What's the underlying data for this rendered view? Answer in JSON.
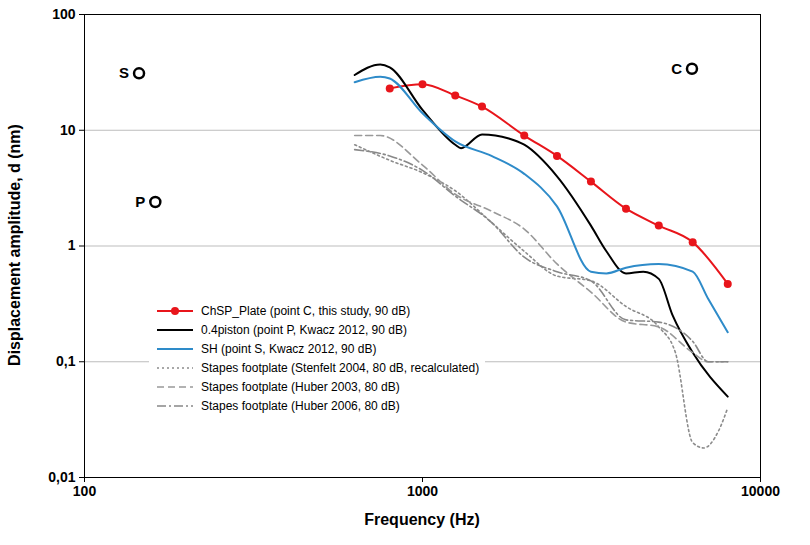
{
  "chart_data": {
    "type": "line",
    "x_label": "Frequency (Hz)",
    "y_label": "Displacement amplitude,  d (nm)",
    "log": true,
    "grid": true,
    "legend": "lower left",
    "xlim": [
      100,
      10000
    ],
    "xticks": [
      100,
      1000,
      10000
    ],
    "ylim": [
      0.01,
      100
    ],
    "yticks": [
      {
        "value": 0.01,
        "label": "0,01"
      },
      {
        "value": 0.1,
        "label": "0,1"
      },
      1,
      10,
      100
    ],
    "series": [
      {
        "name": "ChSP_Plate (point C, this study, 90 dB)",
        "color": "#e8151b",
        "marker": "circle",
        "line_style": "solid",
        "x": [
          800,
          1000,
          1250,
          1500,
          2000,
          2500,
          3150,
          4000,
          5000,
          6300,
          8000
        ],
        "values": [
          23,
          25,
          20,
          16,
          9,
          6,
          3.6,
          2.1,
          1.5,
          1.08,
          0.47
        ]
      },
      {
        "name": "0.4piston (point P, Kwacz 2012, 90 dB)",
        "color": "#000000",
        "line_style": "solid",
        "x": [
          630,
          750,
          800,
          1000,
          1250,
          1300,
          1500,
          1800,
          2000,
          2500,
          3150,
          3500,
          4000,
          4500,
          5000,
          5500,
          6300,
          8000
        ],
        "values": [
          30,
          37,
          35,
          15,
          7.5,
          7,
          9.2,
          8.5,
          7.5,
          4,
          1.5,
          0.9,
          0.58,
          0.6,
          0.52,
          0.25,
          0.12,
          0.05
        ]
      },
      {
        "name": "SH (point S, Kwacz 2012, 90 dB)",
        "color": "#2e8bc9",
        "line_style": "solid",
        "x": [
          630,
          750,
          800,
          1000,
          1250,
          1600,
          2000,
          2500,
          3150,
          3500,
          4000,
          5000,
          6300,
          7000,
          8000
        ],
        "values": [
          26,
          29,
          28,
          14,
          8,
          6,
          4.2,
          2.2,
          0.6,
          0.58,
          0.65,
          0.7,
          0.6,
          0.35,
          0.18
        ]
      },
      {
        "name": "Stapes footplate (Stenfelt 2004, 80 dB, recalculated)",
        "color": "#8c8c8c",
        "line_style": "dotted",
        "x": [
          630,
          800,
          1000,
          1250,
          1600,
          2000,
          2500,
          3150,
          4000,
          5000,
          5600,
          6300,
          6800,
          7500,
          8000
        ],
        "values": [
          7.5,
          5.5,
          4.3,
          3,
          1.6,
          0.9,
          0.55,
          0.5,
          0.3,
          0.2,
          0.12,
          0.02,
          0.018,
          0.025,
          0.04
        ]
      },
      {
        "name": "Stapes footplate (Huber 2003, 80 dB)",
        "color": "#999999",
        "line_style": "dashed",
        "x": [
          630,
          750,
          1000,
          1250,
          1600,
          2000,
          2500,
          3150,
          4000,
          5000,
          6300,
          7000,
          8000
        ],
        "values": [
          9,
          9,
          5,
          2.8,
          2,
          1.4,
          0.7,
          0.4,
          0.22,
          0.2,
          0.12,
          0.1,
          0.1
        ]
      },
      {
        "name": "Stapes footplate (Huber 2006, 80 dB)",
        "color": "#888888",
        "line_style": "dashdot",
        "x": [
          630,
          800,
          1000,
          1250,
          1600,
          2000,
          2500,
          3150,
          4000,
          5000,
          6300,
          7000,
          8000
        ],
        "values": [
          6.8,
          6,
          4.5,
          2.7,
          1.6,
          0.8,
          0.6,
          0.5,
          0.23,
          0.22,
          0.15,
          0.1,
          0.1
        ]
      }
    ],
    "annotations": [
      {
        "text": "S",
        "x": 145,
        "y": 31
      },
      {
        "text": "P",
        "x": 162,
        "y": 2.4
      },
      {
        "text": "C",
        "x": 6270,
        "y": 34
      }
    ]
  }
}
